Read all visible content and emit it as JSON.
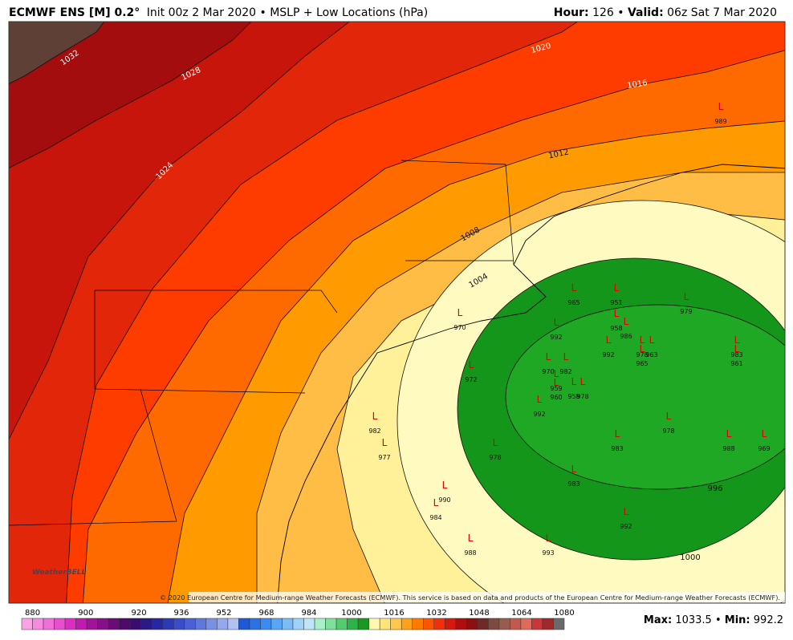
{
  "header": {
    "title": "ECMWF ENS [M] 0.2°",
    "subtitle": "Init 00z 2 Mar 2020 • MSLP + Low Locations (hPa)",
    "hour_label": "Hour:",
    "hour": 126,
    "separator": "•",
    "valid_label": "Valid:",
    "valid": "06z Sat 7 Mar 2020"
  },
  "contours": [
    1032,
    1028,
    1024,
    1020,
    1016,
    1012,
    1008,
    1004,
    1000,
    996
  ],
  "lows": {
    "symbol": "L",
    "values": [
      989,
      965,
      951,
      979,
      970,
      992,
      958,
      986,
      992,
      978,
      963,
      965,
      983,
      961,
      972,
      970,
      982,
      959,
      960,
      958,
      978,
      992,
      982,
      978,
      977,
      978,
      983,
      988,
      969,
      983,
      990,
      984,
      992,
      988,
      993
    ]
  },
  "copyright": "© 2020 European Centre for Medium-range Weather Forecasts (ECMWF). This service is based on data and products of the European Centre for Medium-range Weather Forecasts (ECMWF).",
  "logo": "WeatherBELL",
  "colorbar": {
    "ticks": [
      880,
      900,
      920,
      936,
      952,
      968,
      984,
      1000,
      1016,
      1032,
      1048,
      1064,
      1080
    ],
    "colors": [
      "#f9a3e6",
      "#f68ae0",
      "#f06fd8",
      "#e84fcf",
      "#da2fc2",
      "#c21ab0",
      "#a3129b",
      "#861088",
      "#6a0c77",
      "#4e096a",
      "#3a0c70",
      "#2a1a86",
      "#2528a0",
      "#2c3ab8",
      "#3a4cc8",
      "#4a60d4",
      "#5e78dc",
      "#7890e4",
      "#94a8ec",
      "#b0c2f2",
      "#1e5ad8",
      "#2a72e6",
      "#3a8cf0",
      "#58a6f4",
      "#7abcf6",
      "#9ed2f8",
      "#bfe6f8",
      "#a8f0c8",
      "#7ee09a",
      "#54cc6e",
      "#2eb446",
      "#169a22",
      "#fff8b0",
      "#ffe47a",
      "#ffc84a",
      "#ffa21a",
      "#ff7a00",
      "#ff5400",
      "#f0300a",
      "#d41a0c",
      "#b00e0e",
      "#8c1010",
      "#6e2a24",
      "#7c4a3e",
      "#965c50",
      "#c05a4c",
      "#e06a5a",
      "#c83838",
      "#9e2a2a",
      "#6a6a6a"
    ]
  },
  "footer": {
    "max_label": "Max:",
    "max": 1033.5,
    "separator": "•",
    "min_label": "Min:",
    "min": 992.2
  }
}
